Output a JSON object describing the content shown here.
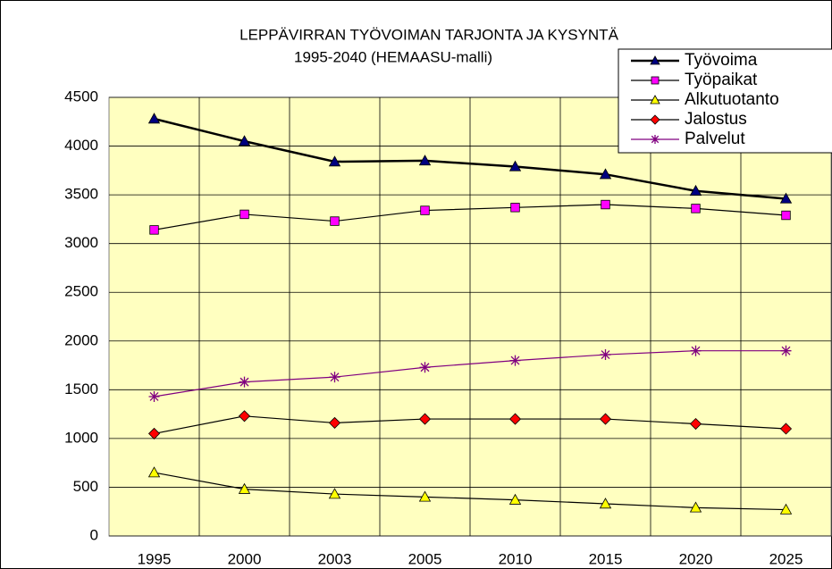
{
  "chart_data": {
    "type": "line",
    "title": "LEPPÄVIRRAN TYÖVOIMAN TARJONTA JA KYSYNTÄ",
    "subtitle": "1995-2040 (HEMAASU-malli)",
    "categories": [
      "1995",
      "2000",
      "2003",
      "2005",
      "2010",
      "2015",
      "2020",
      "2025"
    ],
    "series": [
      {
        "name": "Työvoima",
        "color": "#000080",
        "line_color": "#000000",
        "marker": "triangle",
        "values": [
          4280,
          4050,
          3840,
          3850,
          3790,
          3710,
          3540,
          3460
        ]
      },
      {
        "name": "Työpaikat",
        "color": "#ff00ff",
        "line_color": "#000000",
        "marker": "square",
        "values": [
          3140,
          3300,
          3230,
          3340,
          3370,
          3400,
          3360,
          3290
        ]
      },
      {
        "name": "Alkutuotanto",
        "color": "#ffff00",
        "line_color": "#000000",
        "marker": "triangle",
        "values": [
          650,
          480,
          430,
          400,
          370,
          330,
          290,
          270
        ]
      },
      {
        "name": "Jalostus",
        "color": "#ff0000",
        "line_color": "#000000",
        "marker": "diamond",
        "values": [
          1050,
          1230,
          1160,
          1200,
          1200,
          1200,
          1150,
          1100
        ]
      },
      {
        "name": "Palvelut",
        "color": "#800080",
        "line_color": "#800080",
        "marker": "star",
        "values": [
          1430,
          1580,
          1630,
          1730,
          1800,
          1860,
          1900,
          1900
        ]
      }
    ],
    "ylim": [
      0,
      4500
    ],
    "yticks": [
      0,
      500,
      1000,
      1500,
      2000,
      2500,
      3000,
      3500,
      4000,
      4500
    ],
    "grid": true,
    "legend": "top-right",
    "background": "#ffffc0"
  }
}
